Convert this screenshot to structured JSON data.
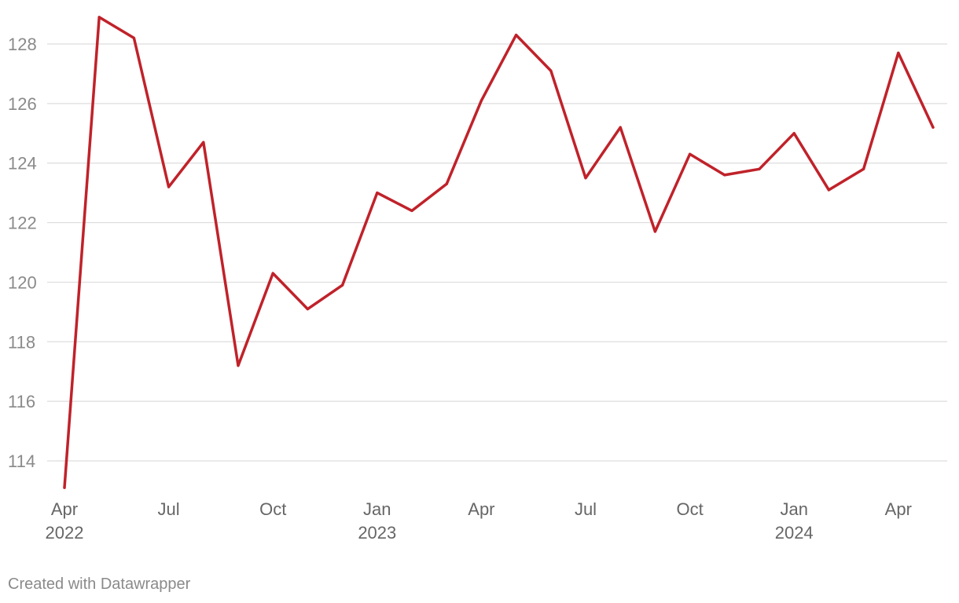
{
  "chart_data": {
    "type": "line",
    "title": "",
    "xlabel": "",
    "ylabel": "",
    "x": [
      "2022-04",
      "2022-05",
      "2022-06",
      "2022-07",
      "2022-08",
      "2022-09",
      "2022-10",
      "2022-11",
      "2022-12",
      "2023-01",
      "2023-02",
      "2023-03",
      "2023-04",
      "2023-05",
      "2023-06",
      "2023-07",
      "2023-08",
      "2023-09",
      "2023-10",
      "2023-11",
      "2023-12",
      "2024-01",
      "2024-02",
      "2024-03",
      "2024-04",
      "2024-05"
    ],
    "series": [
      {
        "values": [
          113.1,
          128.9,
          128.2,
          123.2,
          124.7,
          117.2,
          120.3,
          119.1,
          119.9,
          123.0,
          122.4,
          123.3,
          126.1,
          128.3,
          127.1,
          123.5,
          125.2,
          121.7,
          124.3,
          123.6,
          123.8,
          125.0,
          123.1,
          123.8,
          127.7,
          125.2
        ],
        "color": "#c0222a"
      }
    ],
    "ylim": [
      112.6,
      129.5
    ],
    "yticks": [
      114,
      116,
      118,
      120,
      122,
      124,
      126,
      128
    ],
    "xticks": [
      {
        "x": "2022-04",
        "label": "Apr",
        "sublabel": "2022"
      },
      {
        "x": "2022-07",
        "label": "Jul",
        "sublabel": ""
      },
      {
        "x": "2022-10",
        "label": "Oct",
        "sublabel": ""
      },
      {
        "x": "2023-01",
        "label": "Jan",
        "sublabel": "2023"
      },
      {
        "x": "2023-04",
        "label": "Apr",
        "sublabel": ""
      },
      {
        "x": "2023-07",
        "label": "Jul",
        "sublabel": ""
      },
      {
        "x": "2023-10",
        "label": "Oct",
        "sublabel": ""
      },
      {
        "x": "2024-01",
        "label": "Jan",
        "sublabel": "2024"
      },
      {
        "x": "2024-04",
        "label": "Apr",
        "sublabel": ""
      }
    ],
    "grid": true,
    "grid_color": "#dddddd",
    "tick_label_color": "#8a8a8a",
    "xtick_label_color": "#666666"
  },
  "footer": {
    "credit": "Created with Datawrapper"
  }
}
